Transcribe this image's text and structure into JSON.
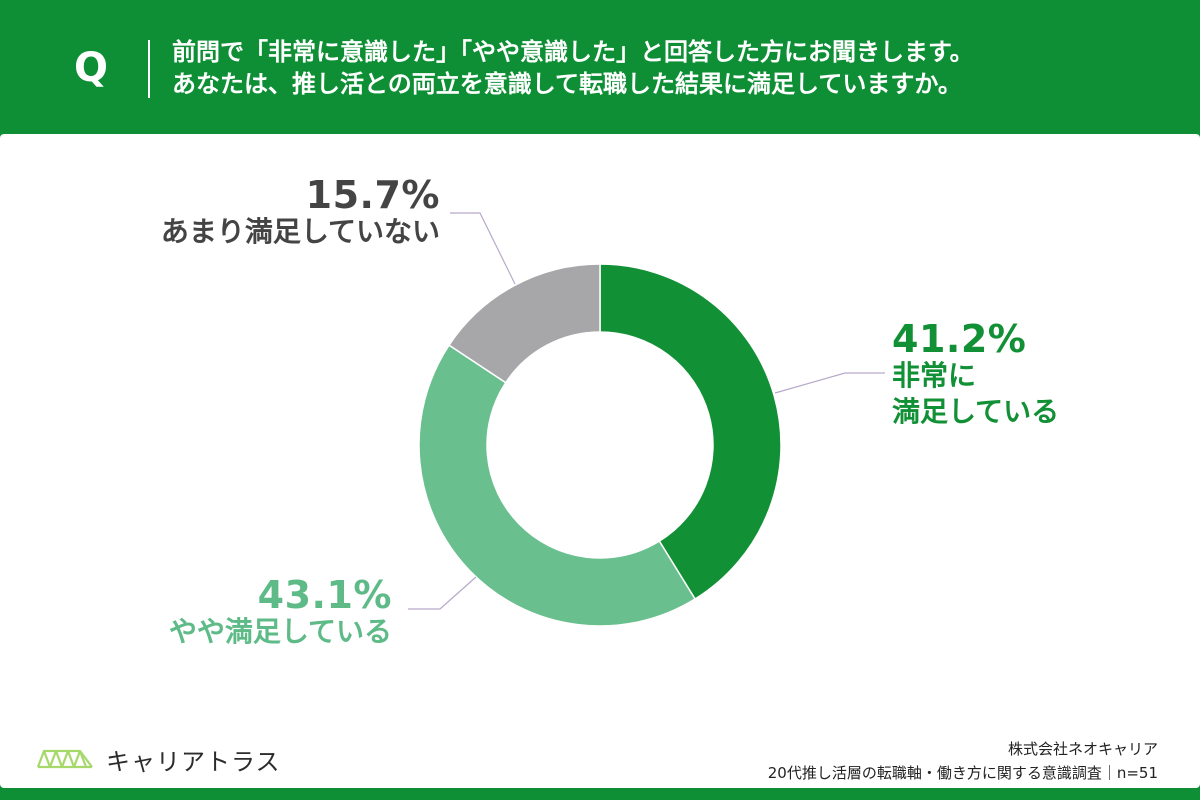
{
  "header": {
    "q_mark": "Q",
    "question_line1": "前問で「非常に意識した」「やや意識した」と回答した方にお聞きします。",
    "question_line2": "あなたは、推し活との両立を意識して転職した結果に満足していますか。"
  },
  "chart_data": {
    "type": "pie",
    "subtype": "donut",
    "slices": [
      {
        "label": "非常に満足している",
        "label_lines": [
          "非常に",
          "満足している"
        ],
        "value": 41.2,
        "value_text": "41.2%",
        "color": "#119035"
      },
      {
        "label": "やや満足している",
        "value": 43.1,
        "value_text": "43.1%",
        "color": "#6abf8e"
      },
      {
        "label": "あまり満足していない",
        "value": 15.7,
        "value_text": "15.7%",
        "color": "#a7a6a9"
      }
    ],
    "start_angle": "12 o'clock",
    "direction": "clockwise"
  },
  "footer": {
    "logo_text": "キャリアトラス",
    "company": "株式会社ネオキャリア",
    "survey": "20代推し活層の転職軸・働き方に関する意識調査｜n=51"
  },
  "colors": {
    "brand_green": "#0f8f35",
    "light_green": "#6abf8e",
    "grey": "#a7a6a9",
    "logo_lime": "#a6d86a"
  }
}
